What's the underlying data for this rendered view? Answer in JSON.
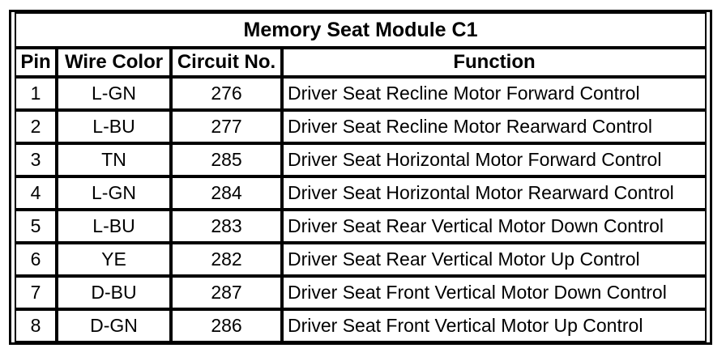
{
  "table": {
    "title": "Memory Seat Module C1",
    "columns": [
      "Pin",
      "Wire Color",
      "Circuit No.",
      "Function"
    ],
    "rows": [
      {
        "pin": "1",
        "wire_color": "L-GN",
        "circuit_no": "276",
        "function": "Driver Seat Recline Motor Forward Control"
      },
      {
        "pin": "2",
        "wire_color": "L-BU",
        "circuit_no": "277",
        "function": "Driver Seat Recline Motor Rearward Control"
      },
      {
        "pin": "3",
        "wire_color": "TN",
        "circuit_no": "285",
        "function": "Driver Seat Horizontal Motor Forward Control"
      },
      {
        "pin": "4",
        "wire_color": "L-GN",
        "circuit_no": "284",
        "function": "Driver Seat Horizontal Motor Rearward Control"
      },
      {
        "pin": "5",
        "wire_color": "L-BU",
        "circuit_no": "283",
        "function": "Driver Seat Rear Vertical Motor Down Control"
      },
      {
        "pin": "6",
        "wire_color": "YE",
        "circuit_no": "282",
        "function": "Driver Seat Rear Vertical Motor Up Control"
      },
      {
        "pin": "7",
        "wire_color": "D-BU",
        "circuit_no": "287",
        "function": "Driver Seat Front Vertical Motor Down Control"
      },
      {
        "pin": "8",
        "wire_color": "D-GN",
        "circuit_no": "286",
        "function": "Driver Seat Front Vertical Motor Up Control"
      }
    ]
  },
  "colors": {
    "border": "#000000",
    "background": "#ffffff",
    "text": "#000000"
  }
}
